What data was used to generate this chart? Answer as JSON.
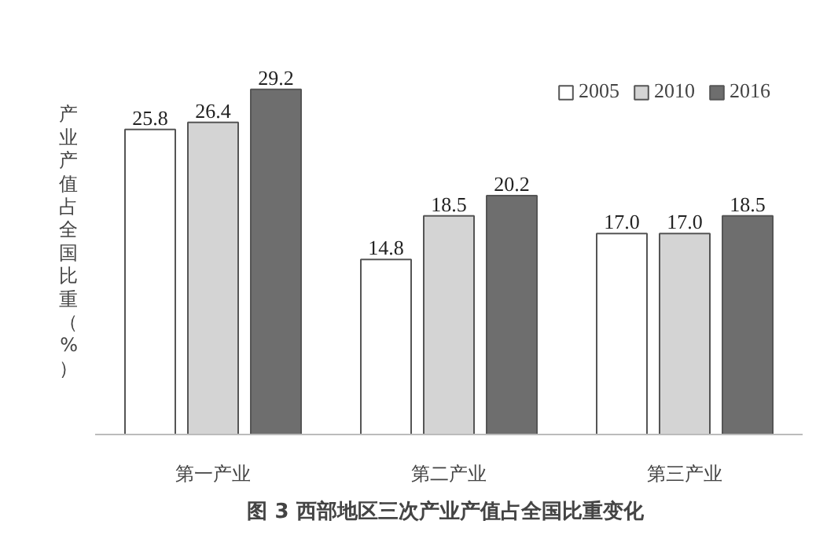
{
  "chart_data": {
    "type": "bar",
    "title": "图 3  西部地区三次产业产值占全国比重变化",
    "ylabel": "产业产值占全国比重（%）",
    "categories": [
      "第一产业",
      "第二产业",
      "第三产业"
    ],
    "series": [
      {
        "name": "2005",
        "color": "#ffffff",
        "values": [
          25.8,
          14.8,
          17.0
        ],
        "value_labels": [
          "25.8",
          "14.8",
          "17.0"
        ]
      },
      {
        "name": "2010",
        "color": "#d4d4d4",
        "values": [
          26.4,
          18.5,
          17.0
        ],
        "value_labels": [
          "26.4",
          "18.5",
          "17.0"
        ]
      },
      {
        "name": "2016",
        "color": "#6e6e6e",
        "values": [
          29.2,
          20.2,
          18.5
        ],
        "value_labels": [
          "29.2",
          "20.2",
          "18.5"
        ]
      }
    ],
    "legend": "top right",
    "grid": false,
    "tick_labels": "x"
  }
}
